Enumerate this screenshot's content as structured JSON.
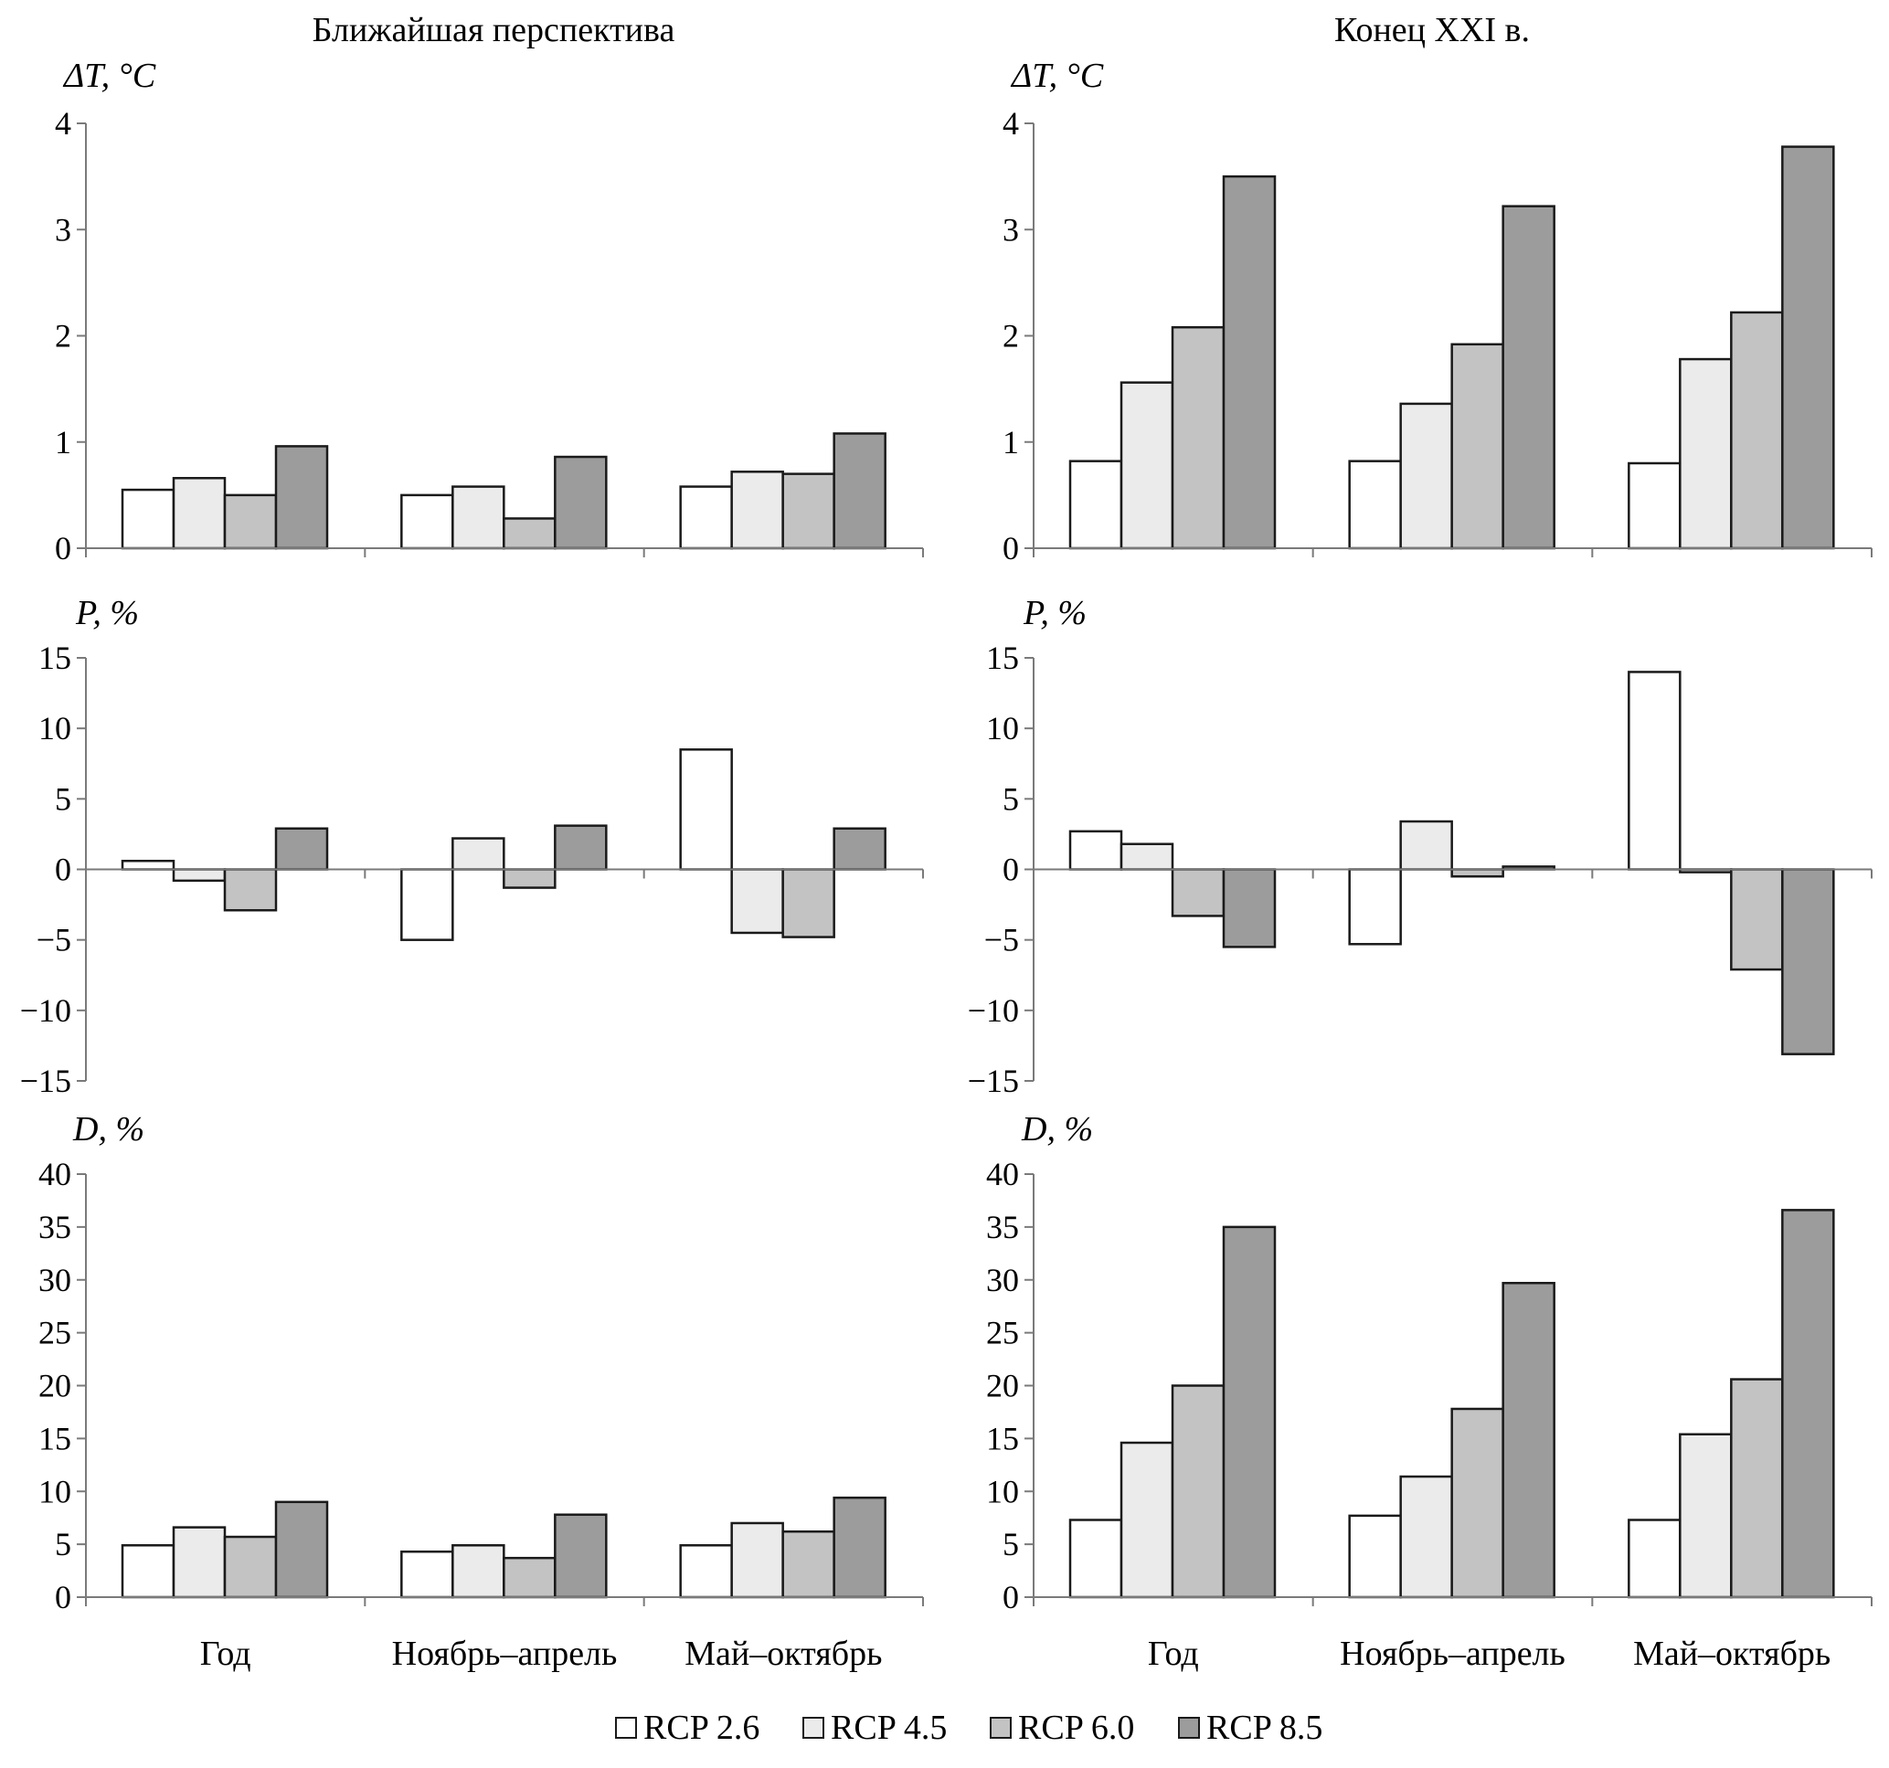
{
  "columns": [
    "Ближайшая перспектива",
    "Конец XXI в."
  ],
  "legend": [
    {
      "label": "RCP 2.6",
      "color": "#ffffff"
    },
    {
      "label": "RCP 4.5",
      "color": "#ebebeb"
    },
    {
      "label": "RCP 6.0",
      "color": "#c3c3c3"
    },
    {
      "label": "RCP 8.5",
      "color": "#9c9c9c"
    }
  ],
  "chart_data": [
    {
      "type": "bar",
      "panel": "dT-near",
      "title": "Ближайшая перспектива",
      "ylabel": "ΔT, °C",
      "ylim": [
        0,
        4
      ],
      "yticks": [
        0,
        1,
        2,
        3,
        4
      ],
      "categories": [
        "Год",
        "Ноябрь–апрель",
        "Май–октябрь"
      ],
      "series": [
        {
          "name": "RCP 2.6",
          "values": [
            0.55,
            0.5,
            0.58
          ]
        },
        {
          "name": "RCP 4.5",
          "values": [
            0.66,
            0.58,
            0.72
          ]
        },
        {
          "name": "RCP 6.0",
          "values": [
            0.5,
            0.28,
            0.7
          ]
        },
        {
          "name": "RCP 8.5",
          "values": [
            0.96,
            0.86,
            1.08
          ]
        }
      ]
    },
    {
      "type": "bar",
      "panel": "dT-end",
      "title": "Конец XXI в.",
      "ylabel": "ΔT, °C",
      "ylim": [
        0,
        4
      ],
      "yticks": [
        0,
        1,
        2,
        3,
        4
      ],
      "categories": [
        "Год",
        "Ноябрь–апрель",
        "Май–октябрь"
      ],
      "series": [
        {
          "name": "RCP 2.6",
          "values": [
            0.82,
            0.82,
            0.8
          ]
        },
        {
          "name": "RCP 4.5",
          "values": [
            1.56,
            1.36,
            1.78
          ]
        },
        {
          "name": "RCP 6.0",
          "values": [
            2.08,
            1.92,
            2.22
          ]
        },
        {
          "name": "RCP 8.5",
          "values": [
            3.5,
            3.22,
            3.78
          ]
        }
      ]
    },
    {
      "type": "bar",
      "panel": "P-near",
      "ylabel": "P, %",
      "ylim": [
        -15,
        15
      ],
      "yticks": [
        -15,
        -10,
        -5,
        0,
        5,
        10,
        15
      ],
      "categories": [
        "Год",
        "Ноябрь–апрель",
        "Май–октябрь"
      ],
      "series": [
        {
          "name": "RCP 2.6",
          "values": [
            0.6,
            -5.0,
            8.5
          ]
        },
        {
          "name": "RCP 4.5",
          "values": [
            -0.8,
            2.2,
            -4.5
          ]
        },
        {
          "name": "RCP 6.0",
          "values": [
            -2.9,
            -1.3,
            -4.8
          ]
        },
        {
          "name": "RCP 8.5",
          "values": [
            2.9,
            3.1,
            2.9
          ]
        }
      ]
    },
    {
      "type": "bar",
      "panel": "P-end",
      "ylabel": "P, %",
      "ylim": [
        -15,
        15
      ],
      "yticks": [
        -15,
        -10,
        -5,
        0,
        5,
        10,
        15
      ],
      "categories": [
        "Год",
        "Ноябрь–апрель",
        "Май–октябрь"
      ],
      "series": [
        {
          "name": "RCP 2.6",
          "values": [
            2.7,
            -5.3,
            14.0
          ]
        },
        {
          "name": "RCP 4.5",
          "values": [
            1.8,
            3.4,
            -0.2
          ]
        },
        {
          "name": "RCP 6.0",
          "values": [
            -3.3,
            -0.5,
            -7.1
          ]
        },
        {
          "name": "RCP 8.5",
          "values": [
            -5.5,
            0.2,
            -13.1
          ]
        }
      ]
    },
    {
      "type": "bar",
      "panel": "D-near",
      "ylabel": "D, %",
      "ylim": [
        0,
        40
      ],
      "yticks": [
        0,
        5,
        10,
        15,
        20,
        25,
        30,
        35,
        40
      ],
      "categories": [
        "Год",
        "Ноябрь–апрель",
        "Май–октябрь"
      ],
      "series": [
        {
          "name": "RCP 2.6",
          "values": [
            4.9,
            4.3,
            4.9
          ]
        },
        {
          "name": "RCP 4.5",
          "values": [
            6.6,
            4.9,
            7.0
          ]
        },
        {
          "name": "RCP 6.0",
          "values": [
            5.7,
            3.7,
            6.2
          ]
        },
        {
          "name": "RCP 8.5",
          "values": [
            9.0,
            7.8,
            9.4
          ]
        }
      ]
    },
    {
      "type": "bar",
      "panel": "D-end",
      "ylabel": "D, %",
      "ylim": [
        0,
        40
      ],
      "yticks": [
        0,
        5,
        10,
        15,
        20,
        25,
        30,
        35,
        40
      ],
      "categories": [
        "Год",
        "Ноябрь–апрель",
        "Май–октябрь"
      ],
      "series": [
        {
          "name": "RCP 2.6",
          "values": [
            7.3,
            7.7,
            7.3
          ]
        },
        {
          "name": "RCP 4.5",
          "values": [
            14.6,
            11.4,
            15.4
          ]
        },
        {
          "name": "RCP 6.0",
          "values": [
            20.0,
            17.8,
            20.6
          ]
        },
        {
          "name": "RCP 8.5",
          "values": [
            35.0,
            29.7,
            36.6
          ]
        }
      ]
    }
  ]
}
